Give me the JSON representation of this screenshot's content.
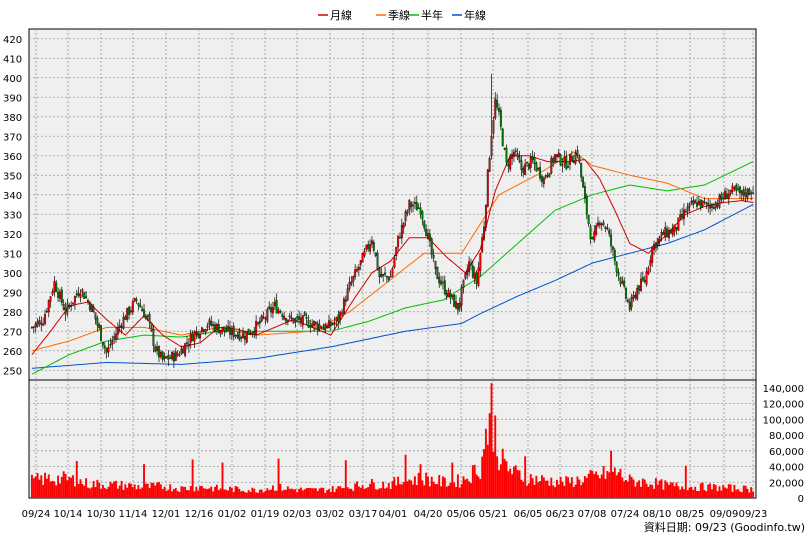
{
  "chart_data": {
    "type": "candlestick",
    "legend": [
      {
        "name": "月線",
        "color": "#d00000"
      },
      {
        "name": "季線",
        "color": "#ff6a00"
      },
      {
        "name": "半年",
        "color": "#00c000"
      },
      {
        "name": "年線",
        "color": "#0050d0"
      }
    ],
    "price_axis": {
      "ylim": [
        245,
        425
      ],
      "ticks": [
        "420",
        "410",
        "400",
        "390",
        "380",
        "370",
        "360",
        "350",
        "340",
        "330",
        "320",
        "310",
        "300",
        "290",
        "280",
        "270",
        "260",
        "250"
      ]
    },
    "volume_axis": {
      "ylim": [
        0,
        150000
      ],
      "ticks": [
        "140,000",
        "120,000",
        "100,000",
        "80,000",
        "60,000",
        "40,000",
        "20,000",
        "0"
      ]
    },
    "x_ticks": [
      "09/24",
      "10/14",
      "10/30",
      "11/14",
      "12/01",
      "12/16",
      "01/02",
      "01/19",
      "02/03",
      "03/02",
      "03/17",
      "04/01",
      "04/20",
      "05/06",
      "05/21",
      "06/05",
      "06/23",
      "07/08",
      "07/24",
      "08/10",
      "08/25",
      "09/09",
      "09/23"
    ],
    "close_anchors": [
      [
        0,
        272
      ],
      [
        6,
        276
      ],
      [
        12,
        295
      ],
      [
        18,
        280
      ],
      [
        26,
        292
      ],
      [
        32,
        282
      ],
      [
        40,
        259
      ],
      [
        48,
        275
      ],
      [
        56,
        286
      ],
      [
        62,
        276
      ],
      [
        66,
        261
      ],
      [
        70,
        255
      ],
      [
        78,
        258
      ],
      [
        86,
        268
      ],
      [
        94,
        274
      ],
      [
        104,
        270
      ],
      [
        114,
        268
      ],
      [
        122,
        274
      ],
      [
        130,
        283
      ],
      [
        138,
        276
      ],
      [
        146,
        275
      ],
      [
        154,
        273
      ],
      [
        158,
        272
      ],
      [
        164,
        276
      ],
      [
        170,
        293
      ],
      [
        176,
        305
      ],
      [
        182,
        318
      ],
      [
        186,
        298
      ],
      [
        192,
        298
      ],
      [
        196,
        317
      ],
      [
        202,
        335
      ],
      [
        208,
        333
      ],
      [
        212,
        318
      ],
      [
        216,
        300
      ],
      [
        222,
        290
      ],
      [
        228,
        282
      ],
      [
        234,
        305
      ],
      [
        238,
        295
      ],
      [
        242,
        325
      ],
      [
        244,
        350
      ],
      [
        246,
        372
      ],
      [
        248,
        388
      ],
      [
        250,
        380
      ],
      [
        254,
        355
      ],
      [
        258,
        362
      ],
      [
        262,
        353
      ],
      [
        268,
        357
      ],
      [
        274,
        348
      ],
      [
        280,
        360
      ],
      [
        286,
        356
      ],
      [
        292,
        362
      ],
      [
        296,
        336
      ],
      [
        300,
        315
      ],
      [
        304,
        328
      ],
      [
        308,
        322
      ],
      [
        312,
        306
      ],
      [
        316,
        293
      ],
      [
        320,
        282
      ],
      [
        324,
        292
      ],
      [
        328,
        296
      ],
      [
        332,
        313
      ],
      [
        338,
        320
      ],
      [
        344,
        322
      ],
      [
        350,
        332
      ],
      [
        356,
        336
      ],
      [
        362,
        334
      ],
      [
        368,
        337
      ],
      [
        374,
        342
      ],
      [
        380,
        340
      ],
      [
        386,
        343
      ]
    ],
    "volume_anchors": [
      [
        0,
        22000
      ],
      [
        10,
        25000
      ],
      [
        20,
        24000
      ],
      [
        30,
        18000
      ],
      [
        40,
        17000
      ],
      [
        50,
        16000
      ],
      [
        60,
        14000
      ],
      [
        70,
        15000
      ],
      [
        80,
        12000
      ],
      [
        90,
        14000
      ],
      [
        100,
        12000
      ],
      [
        110,
        11000
      ],
      [
        120,
        10000
      ],
      [
        130,
        14000
      ],
      [
        140,
        11000
      ],
      [
        150,
        10000
      ],
      [
        160,
        11000
      ],
      [
        170,
        14000
      ],
      [
        180,
        18000
      ],
      [
        190,
        17000
      ],
      [
        200,
        22000
      ],
      [
        210,
        25000
      ],
      [
        220,
        20000
      ],
      [
        230,
        22000
      ],
      [
        236,
        32000
      ],
      [
        240,
        40000
      ],
      [
        244,
        75000
      ],
      [
        246,
        115000
      ],
      [
        248,
        70000
      ],
      [
        252,
        45000
      ],
      [
        258,
        32000
      ],
      [
        266,
        25000
      ],
      [
        276,
        22000
      ],
      [
        286,
        20000
      ],
      [
        296,
        24000
      ],
      [
        306,
        30000
      ],
      [
        312,
        34000
      ],
      [
        320,
        22000
      ],
      [
        330,
        20000
      ],
      [
        340,
        16000
      ],
      [
        350,
        14000
      ],
      [
        360,
        14000
      ],
      [
        370,
        13000
      ],
      [
        380,
        12000
      ],
      [
        386,
        11000
      ]
    ],
    "volume_spikes": [
      [
        24,
        47000
      ],
      [
        60,
        43000
      ],
      [
        86,
        49000
      ],
      [
        102,
        45000
      ],
      [
        132,
        50000
      ],
      [
        168,
        48000
      ],
      [
        200,
        55000
      ],
      [
        208,
        43000
      ],
      [
        225,
        45000
      ],
      [
        243,
        88000
      ],
      [
        246,
        146000
      ],
      [
        248,
        105000
      ],
      [
        264,
        53000
      ],
      [
        310,
        60000
      ],
      [
        350,
        41000
      ]
    ],
    "ma_year_anchors": [
      [
        0,
        251
      ],
      [
        40,
        254
      ],
      [
        80,
        253
      ],
      [
        120,
        256
      ],
      [
        160,
        262
      ],
      [
        200,
        270
      ],
      [
        230,
        274
      ],
      [
        240,
        279
      ],
      [
        260,
        288
      ],
      [
        280,
        296
      ],
      [
        300,
        305
      ],
      [
        320,
        310
      ],
      [
        340,
        315
      ],
      [
        360,
        322
      ],
      [
        386,
        335
      ]
    ],
    "ma_half_anchors": [
      [
        0,
        248
      ],
      [
        20,
        258
      ],
      [
        40,
        265
      ],
      [
        60,
        268
      ],
      [
        80,
        267
      ],
      [
        100,
        270
      ],
      [
        120,
        270
      ],
      [
        160,
        270
      ],
      [
        180,
        275
      ],
      [
        200,
        282
      ],
      [
        220,
        286
      ],
      [
        240,
        298
      ],
      [
        260,
        315
      ],
      [
        280,
        332
      ],
      [
        300,
        340
      ],
      [
        320,
        345
      ],
      [
        340,
        342
      ],
      [
        360,
        345
      ],
      [
        386,
        357
      ]
    ],
    "ma_quarter_anchors": [
      [
        0,
        260
      ],
      [
        20,
        265
      ],
      [
        40,
        272
      ],
      [
        60,
        272
      ],
      [
        80,
        268
      ],
      [
        100,
        272
      ],
      [
        120,
        268
      ],
      [
        150,
        270
      ],
      [
        170,
        280
      ],
      [
        190,
        295
      ],
      [
        210,
        310
      ],
      [
        230,
        310
      ],
      [
        250,
        340
      ],
      [
        270,
        350
      ],
      [
        290,
        362
      ],
      [
        300,
        355
      ],
      [
        320,
        350
      ],
      [
        340,
        346
      ],
      [
        360,
        338
      ],
      [
        386,
        338
      ]
    ],
    "ma_month_anchors": [
      [
        0,
        258
      ],
      [
        10,
        270
      ],
      [
        20,
        283
      ],
      [
        30,
        285
      ],
      [
        40,
        276
      ],
      [
        50,
        268
      ],
      [
        60,
        278
      ],
      [
        70,
        268
      ],
      [
        80,
        262
      ],
      [
        90,
        264
      ],
      [
        100,
        272
      ],
      [
        110,
        271
      ],
      [
        120,
        268
      ],
      [
        140,
        276
      ],
      [
        160,
        268
      ],
      [
        172,
        286
      ],
      [
        182,
        300
      ],
      [
        192,
        306
      ],
      [
        202,
        318
      ],
      [
        212,
        318
      ],
      [
        222,
        308
      ],
      [
        232,
        300
      ],
      [
        240,
        312
      ],
      [
        248,
        342
      ],
      [
        256,
        360
      ],
      [
        266,
        360
      ],
      [
        276,
        357
      ],
      [
        286,
        357
      ],
      [
        296,
        358
      ],
      [
        304,
        348
      ],
      [
        312,
        332
      ],
      [
        320,
        315
      ],
      [
        330,
        310
      ],
      [
        340,
        320
      ],
      [
        350,
        330
      ],
      [
        360,
        334
      ],
      [
        370,
        336
      ],
      [
        380,
        337
      ],
      [
        386,
        336
      ]
    ],
    "footer_text": "資料日期: 09/23  (Goodinfo.tw)"
  }
}
